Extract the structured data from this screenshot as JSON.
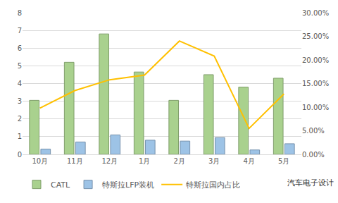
{
  "chart_data": {
    "type": "bar",
    "categories": [
      "10月",
      "11月",
      "12月",
      "1月",
      "2月",
      "3月",
      "4月",
      "5月"
    ],
    "series": [
      {
        "name": "CATL",
        "type": "bar",
        "color": "#a9d18e",
        "values": [
          3.05,
          5.2,
          6.8,
          4.65,
          3.05,
          4.5,
          3.8,
          4.3
        ]
      },
      {
        "name": "特斯拉LFP装机",
        "type": "bar",
        "color": "#9dc3e6",
        "values": [
          0.3,
          0.7,
          1.1,
          0.8,
          0.75,
          0.95,
          0.25,
          0.6
        ]
      },
      {
        "name": "特斯拉国内占比",
        "type": "line",
        "color": "#ffc000",
        "axis": "y2",
        "values": [
          9.8,
          13.5,
          15.8,
          16.8,
          24.0,
          20.8,
          5.5,
          12.8
        ]
      }
    ],
    "ylim": [
      0,
      8
    ],
    "yticks": [
      0,
      1,
      2,
      3,
      4,
      5,
      6,
      7,
      8
    ],
    "y2lim": [
      0,
      30
    ],
    "y2ticks": [
      {
        "value": 0,
        "label": "0.00%"
      },
      {
        "value": 5,
        "label": "5.00%"
      },
      {
        "value": 10,
        "label": "10.00%"
      },
      {
        "value": 15,
        "label": "15.00%"
      },
      {
        "value": 20,
        "label": "20.00%"
      },
      {
        "value": 25,
        "label": "25.00%"
      },
      {
        "value": 30,
        "label": "30.00%"
      }
    ],
    "grid": true,
    "legend": "bottom",
    "annotations": [
      {
        "text": "汽车电子设计"
      }
    ]
  }
}
